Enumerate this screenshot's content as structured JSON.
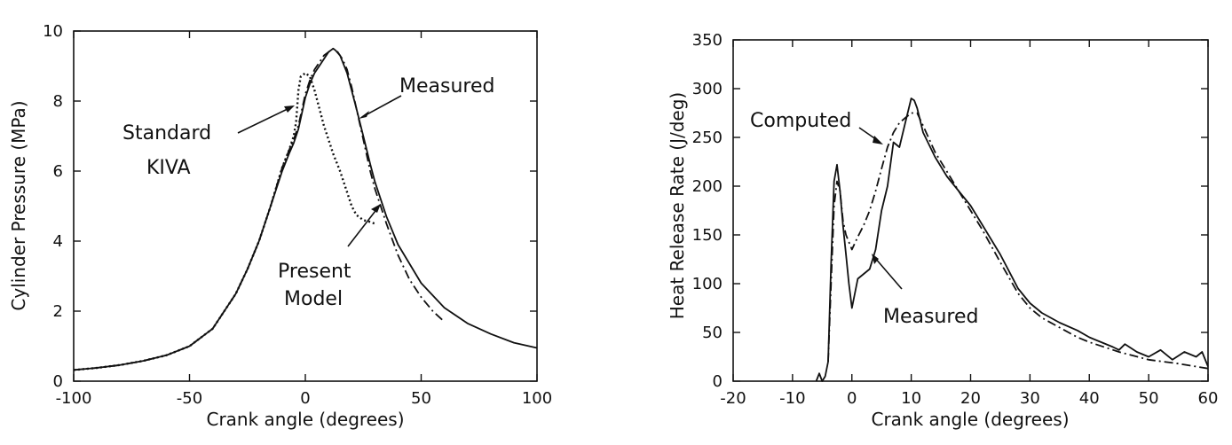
{
  "chart_data": [
    {
      "type": "line",
      "title": "",
      "xlabel": "Crank angle  (degrees)",
      "ylabel": "Cylinder Pressure  (MPa)",
      "xlim": [
        -100,
        100
      ],
      "ylim": [
        0,
        10
      ],
      "xticks": [
        -100,
        -50,
        0,
        50,
        100
      ],
      "xtick_labels": [
        "-100",
        "-50",
        "0",
        "50",
        "100"
      ],
      "yticks": [
        0,
        2,
        4,
        6,
        8,
        10
      ],
      "ytick_labels": [
        "0",
        "2",
        "4",
        "6",
        "8",
        "10"
      ],
      "grid": false,
      "series": [
        {
          "name": "Measured",
          "style": "solid",
          "x": [
            -100,
            -90,
            -80,
            -70,
            -60,
            -50,
            -40,
            -30,
            -25,
            -20,
            -15,
            -10,
            -7,
            -5,
            -3,
            -1,
            0,
            2,
            4,
            6,
            8,
            10,
            12,
            13,
            15,
            18,
            20,
            22,
            25,
            28,
            30,
            35,
            40,
            50,
            60,
            70,
            80,
            90,
            100
          ],
          "y": [
            0.32,
            0.38,
            0.46,
            0.58,
            0.74,
            1.0,
            1.5,
            2.5,
            3.2,
            4.0,
            5.0,
            6.0,
            6.5,
            6.8,
            7.2,
            7.8,
            8.1,
            8.5,
            8.8,
            9.0,
            9.2,
            9.4,
            9.5,
            9.45,
            9.3,
            8.8,
            8.3,
            7.8,
            7.0,
            6.2,
            5.7,
            4.7,
            3.9,
            2.8,
            2.1,
            1.65,
            1.35,
            1.1,
            0.95
          ]
        },
        {
          "name": "Present Model",
          "style": "dashdot",
          "x": [
            -100,
            -90,
            -80,
            -70,
            -60,
            -50,
            -40,
            -30,
            -25,
            -20,
            -15,
            -10,
            -7,
            -5,
            -3,
            -1,
            0,
            2,
            4,
            6,
            8,
            10,
            12,
            14,
            16,
            18,
            20,
            22,
            25,
            28,
            30,
            35,
            40,
            45,
            50,
            55,
            60
          ],
          "y": [
            0.32,
            0.38,
            0.46,
            0.58,
            0.74,
            1.0,
            1.5,
            2.5,
            3.2,
            4.0,
            5.0,
            6.1,
            6.6,
            6.9,
            7.3,
            7.9,
            8.2,
            8.6,
            8.9,
            9.1,
            9.3,
            9.4,
            9.5,
            9.4,
            9.2,
            8.9,
            8.4,
            7.8,
            6.9,
            6.0,
            5.5,
            4.5,
            3.6,
            2.9,
            2.4,
            2.0,
            1.7
          ]
        },
        {
          "name": "Standard KIVA",
          "style": "dotted",
          "x": [
            -100,
            -90,
            -80,
            -70,
            -60,
            -50,
            -40,
            -30,
            -25,
            -20,
            -15,
            -10,
            -7,
            -5,
            -4,
            -3,
            -2,
            0,
            2,
            4,
            6,
            8,
            10,
            12,
            15,
            18,
            20,
            22,
            25,
            28,
            30
          ],
          "y": [
            0.32,
            0.38,
            0.46,
            0.58,
            0.74,
            1.0,
            1.5,
            2.5,
            3.2,
            4.0,
            5.0,
            6.1,
            6.6,
            7.0,
            7.4,
            8.3,
            8.7,
            8.8,
            8.7,
            8.3,
            7.8,
            7.3,
            6.9,
            6.5,
            6.0,
            5.4,
            5.0,
            4.75,
            4.6,
            4.55,
            4.5
          ]
        }
      ],
      "annotations": [
        "Measured",
        "Standard",
        "KIVA",
        "Present",
        "Model"
      ]
    },
    {
      "type": "line",
      "title": "",
      "xlabel": "Crank angle  (degrees)",
      "ylabel": "Heat Release Rate  (J/deg)",
      "xlim": [
        -20,
        60
      ],
      "ylim": [
        0,
        350
      ],
      "xticks": [
        -20,
        -10,
        0,
        10,
        20,
        30,
        40,
        50,
        60
      ],
      "xtick_labels": [
        "-20",
        "-10",
        "0",
        "10",
        "20",
        "30",
        "40",
        "50",
        "60"
      ],
      "yticks": [
        0,
        50,
        100,
        150,
        200,
        250,
        300,
        350
      ],
      "ytick_labels": [
        "0",
        "50",
        "100",
        "150",
        "200",
        "250",
        "300",
        "350"
      ],
      "grid": false,
      "series": [
        {
          "name": "Measured",
          "style": "solid",
          "x": [
            -6,
            -5.5,
            -5,
            -4.5,
            -4,
            -3.5,
            -3,
            -2.5,
            -2,
            -1.5,
            -1,
            -0.5,
            0,
            1,
            2,
            3,
            4,
            5,
            6,
            7,
            8,
            9,
            10,
            10.5,
            11,
            12,
            14,
            16,
            18,
            20,
            22,
            25,
            28,
            30,
            32,
            35,
            38,
            40,
            42,
            44,
            45,
            46,
            48,
            50,
            52,
            54,
            56,
            58,
            59,
            60
          ],
          "y": [
            0,
            8,
            0,
            5,
            20,
            120,
            205,
            222,
            195,
            160,
            130,
            100,
            75,
            105,
            110,
            115,
            135,
            175,
            200,
            245,
            240,
            265,
            290,
            288,
            280,
            255,
            230,
            210,
            195,
            180,
            160,
            130,
            95,
            80,
            70,
            60,
            52,
            45,
            40,
            35,
            32,
            38,
            30,
            25,
            32,
            22,
            30,
            25,
            30,
            15
          ]
        },
        {
          "name": "Computed",
          "style": "dashdot",
          "x": [
            -4,
            -3.5,
            -3,
            -2.5,
            -2,
            -1.5,
            -1,
            0,
            1,
            2,
            3,
            4,
            5,
            6,
            7,
            8,
            9,
            10,
            11,
            12,
            14,
            16,
            18,
            20,
            22,
            25,
            28,
            30,
            32,
            35,
            38,
            40,
            45,
            50,
            55,
            60
          ],
          "y": [
            20,
            100,
            180,
            205,
            195,
            165,
            150,
            135,
            148,
            160,
            175,
            195,
            218,
            240,
            255,
            265,
            270,
            275,
            275,
            262,
            235,
            215,
            195,
            175,
            155,
            122,
            90,
            75,
            65,
            55,
            45,
            40,
            30,
            22,
            18,
            13
          ]
        }
      ],
      "annotations": [
        "Computed",
        "Measured"
      ]
    }
  ]
}
